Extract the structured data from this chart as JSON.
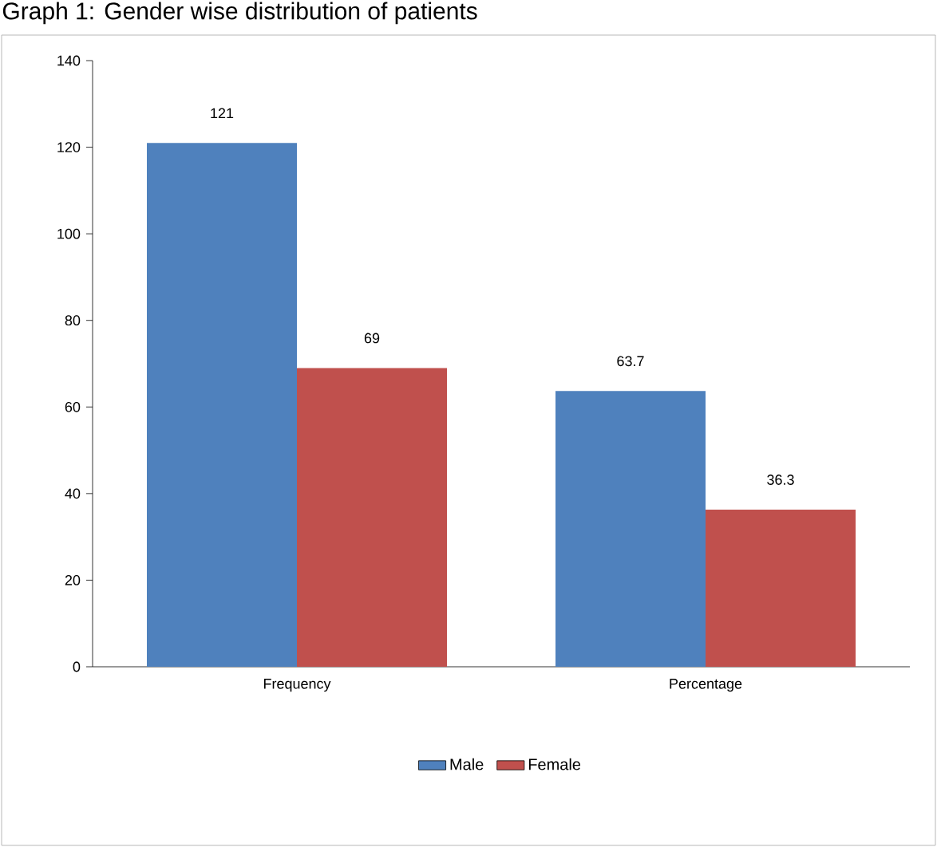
{
  "chart_data": {
    "type": "bar",
    "title": "Graph 1: Gender wise distribution of patients",
    "categories": [
      "Frequency",
      "Percentage"
    ],
    "series": [
      {
        "name": "Male",
        "color": "#4f81bd",
        "values": [
          121,
          63.7
        ]
      },
      {
        "name": "Female",
        "color": "#c0504d",
        "values": [
          69,
          36.3
        ]
      }
    ],
    "ylim": [
      0,
      140
    ],
    "yticks": [
      0,
      20,
      40,
      60,
      80,
      100,
      120,
      140
    ],
    "grid": false,
    "legend": "bottom",
    "data_labels": true
  }
}
